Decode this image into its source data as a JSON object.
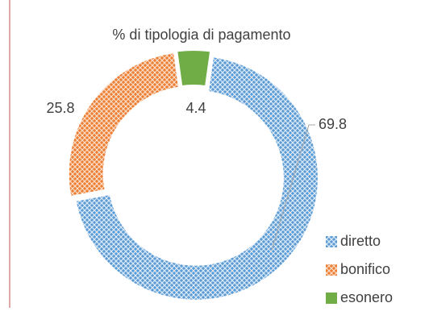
{
  "chart_data": {
    "type": "donut",
    "title": "% di tipologia di pagamento",
    "categories": [
      "diretto",
      "bonifico",
      "esonero"
    ],
    "values": [
      69.8,
      25.8,
      4.4
    ],
    "colors": [
      "#5b9bd5",
      "#ed7d31",
      "#70ad47"
    ],
    "legend": "right"
  }
}
